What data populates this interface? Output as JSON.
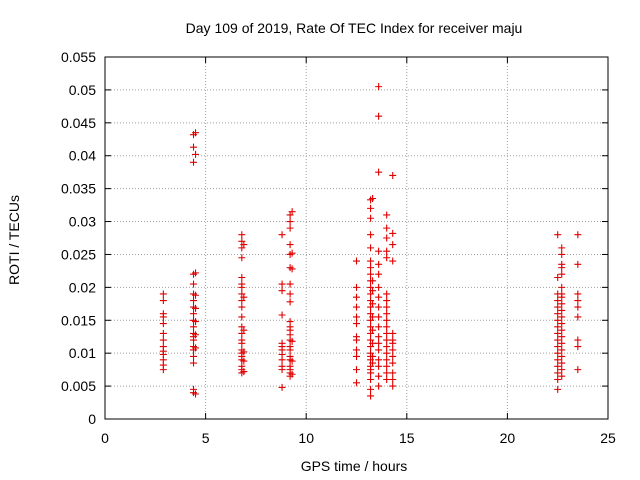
{
  "chart_data": {
    "type": "scatter",
    "title": "Day 109 of 2019, Rate Of TEC Index for receiver maju",
    "xlabel": "GPS time / hours",
    "ylabel": "ROTI / TECUs",
    "xlim": [
      0,
      25
    ],
    "ylim": [
      0,
      0.055
    ],
    "xticks": [
      0,
      5,
      10,
      15,
      20,
      25
    ],
    "xtick_labels": [
      "0",
      "5",
      "10",
      "15",
      "20",
      "25"
    ],
    "yticks": [
      0,
      0.005,
      0.01,
      0.015,
      0.02,
      0.025,
      0.03,
      0.035,
      0.04,
      0.045,
      0.05,
      0.055
    ],
    "ytick_labels": [
      "0",
      "0.005",
      "0.01",
      "0.015",
      "0.02",
      "0.025",
      "0.03",
      "0.035",
      "0.04",
      "0.045",
      "0.05",
      "0.055"
    ],
    "grid": true,
    "marker": "+",
    "color": "#e00000",
    "series": [
      {
        "name": "ROTI",
        "points": [
          [
            2.9,
            0.0075
          ],
          [
            2.9,
            0.0082
          ],
          [
            2.9,
            0.009
          ],
          [
            2.9,
            0.0098
          ],
          [
            2.9,
            0.0103
          ],
          [
            2.9,
            0.011
          ],
          [
            2.9,
            0.012
          ],
          [
            2.9,
            0.013
          ],
          [
            2.9,
            0.0145
          ],
          [
            2.9,
            0.0155
          ],
          [
            2.9,
            0.016
          ],
          [
            2.9,
            0.018
          ],
          [
            2.9,
            0.019
          ],
          [
            4.4,
            0.004
          ],
          [
            4.4,
            0.0045
          ],
          [
            4.4,
            0.0085
          ],
          [
            4.4,
            0.0095
          ],
          [
            4.4,
            0.0105
          ],
          [
            4.4,
            0.011
          ],
          [
            4.4,
            0.012
          ],
          [
            4.4,
            0.0125
          ],
          [
            4.4,
            0.013
          ],
          [
            4.4,
            0.014
          ],
          [
            4.4,
            0.015
          ],
          [
            4.4,
            0.016
          ],
          [
            4.4,
            0.017
          ],
          [
            4.4,
            0.018
          ],
          [
            4.4,
            0.019
          ],
          [
            4.4,
            0.0205
          ],
          [
            4.4,
            0.022
          ],
          [
            4.4,
            0.039
          ],
          [
            4.4,
            0.0413
          ],
          [
            4.4,
            0.0432
          ],
          [
            4.5,
            0.0038
          ],
          [
            4.5,
            0.0108
          ],
          [
            4.5,
            0.0128
          ],
          [
            4.5,
            0.0148
          ],
          [
            4.5,
            0.0168
          ],
          [
            4.5,
            0.0188
          ],
          [
            4.5,
            0.0222
          ],
          [
            4.5,
            0.0402
          ],
          [
            4.5,
            0.0435
          ],
          [
            6.8,
            0.007
          ],
          [
            6.8,
            0.0075
          ],
          [
            6.8,
            0.008
          ],
          [
            6.8,
            0.009
          ],
          [
            6.8,
            0.0095
          ],
          [
            6.8,
            0.01
          ],
          [
            6.8,
            0.0105
          ],
          [
            6.8,
            0.0115
          ],
          [
            6.8,
            0.012
          ],
          [
            6.8,
            0.013
          ],
          [
            6.8,
            0.014
          ],
          [
            6.8,
            0.0155
          ],
          [
            6.8,
            0.017
          ],
          [
            6.8,
            0.018
          ],
          [
            6.8,
            0.019
          ],
          [
            6.8,
            0.02
          ],
          [
            6.8,
            0.0205
          ],
          [
            6.8,
            0.0215
          ],
          [
            6.8,
            0.0245
          ],
          [
            6.8,
            0.026
          ],
          [
            6.8,
            0.027
          ],
          [
            6.8,
            0.028
          ],
          [
            6.9,
            0.0072
          ],
          [
            6.9,
            0.0088
          ],
          [
            6.9,
            0.0102
          ],
          [
            6.9,
            0.0135
          ],
          [
            6.9,
            0.0185
          ],
          [
            6.9,
            0.0265
          ],
          [
            8.8,
            0.0048
          ],
          [
            8.8,
            0.0075
          ],
          [
            8.8,
            0.008
          ],
          [
            8.8,
            0.009
          ],
          [
            8.8,
            0.0098
          ],
          [
            8.8,
            0.0105
          ],
          [
            8.8,
            0.011
          ],
          [
            8.8,
            0.0115
          ],
          [
            8.8,
            0.0158
          ],
          [
            8.8,
            0.0195
          ],
          [
            8.8,
            0.0205
          ],
          [
            8.8,
            0.028
          ],
          [
            9.2,
            0.0065
          ],
          [
            9.2,
            0.007
          ],
          [
            9.2,
            0.0075
          ],
          [
            9.2,
            0.008
          ],
          [
            9.2,
            0.009
          ],
          [
            9.2,
            0.0095
          ],
          [
            9.2,
            0.0105
          ],
          [
            9.2,
            0.011
          ],
          [
            9.2,
            0.012
          ],
          [
            9.2,
            0.0128
          ],
          [
            9.2,
            0.0135
          ],
          [
            9.2,
            0.014
          ],
          [
            9.2,
            0.0148
          ],
          [
            9.2,
            0.0178
          ],
          [
            9.2,
            0.019
          ],
          [
            9.2,
            0.0205
          ],
          [
            9.2,
            0.023
          ],
          [
            9.2,
            0.025
          ],
          [
            9.2,
            0.0265
          ],
          [
            9.2,
            0.029
          ],
          [
            9.2,
            0.03
          ],
          [
            9.2,
            0.031
          ],
          [
            9.3,
            0.0068
          ],
          [
            9.3,
            0.0088
          ],
          [
            9.3,
            0.0118
          ],
          [
            9.3,
            0.0228
          ],
          [
            9.3,
            0.0252
          ],
          [
            9.3,
            0.0315
          ],
          [
            12.5,
            0.0055
          ],
          [
            12.5,
            0.0075
          ],
          [
            12.5,
            0.0095
          ],
          [
            12.5,
            0.0105
          ],
          [
            12.5,
            0.012
          ],
          [
            12.5,
            0.0125
          ],
          [
            12.5,
            0.0145
          ],
          [
            12.5,
            0.0155
          ],
          [
            12.5,
            0.017
          ],
          [
            12.5,
            0.0185
          ],
          [
            12.5,
            0.02
          ],
          [
            12.5,
            0.024
          ],
          [
            13.2,
            0.0035
          ],
          [
            13.2,
            0.0045
          ],
          [
            13.2,
            0.006
          ],
          [
            13.2,
            0.007
          ],
          [
            13.2,
            0.0075
          ],
          [
            13.2,
            0.008
          ],
          [
            13.2,
            0.009
          ],
          [
            13.2,
            0.0095
          ],
          [
            13.2,
            0.01
          ],
          [
            13.2,
            0.011
          ],
          [
            13.2,
            0.012
          ],
          [
            13.2,
            0.013
          ],
          [
            13.2,
            0.014
          ],
          [
            13.2,
            0.015
          ],
          [
            13.2,
            0.016
          ],
          [
            13.2,
            0.017
          ],
          [
            13.2,
            0.018
          ],
          [
            13.2,
            0.019
          ],
          [
            13.2,
            0.02
          ],
          [
            13.2,
            0.021
          ],
          [
            13.2,
            0.022
          ],
          [
            13.2,
            0.023
          ],
          [
            13.2,
            0.024
          ],
          [
            13.2,
            0.026
          ],
          [
            13.2,
            0.028
          ],
          [
            13.2,
            0.0305
          ],
          [
            13.2,
            0.032
          ],
          [
            13.2,
            0.0333
          ],
          [
            13.3,
            0.0085
          ],
          [
            13.3,
            0.0095
          ],
          [
            13.3,
            0.0115
          ],
          [
            13.3,
            0.0135
          ],
          [
            13.3,
            0.0155
          ],
          [
            13.3,
            0.0175
          ],
          [
            13.3,
            0.0195
          ],
          [
            13.3,
            0.021
          ],
          [
            13.3,
            0.0335
          ],
          [
            13.6,
            0.005
          ],
          [
            13.6,
            0.0065
          ],
          [
            13.6,
            0.008
          ],
          [
            13.6,
            0.009
          ],
          [
            13.6,
            0.0105
          ],
          [
            13.6,
            0.0115
          ],
          [
            13.6,
            0.0125
          ],
          [
            13.6,
            0.014
          ],
          [
            13.6,
            0.0155
          ],
          [
            13.6,
            0.017
          ],
          [
            13.6,
            0.0185
          ],
          [
            13.6,
            0.02
          ],
          [
            13.6,
            0.022
          ],
          [
            13.6,
            0.0235
          ],
          [
            13.6,
            0.0255
          ],
          [
            13.6,
            0.0375
          ],
          [
            13.6,
            0.046
          ],
          [
            13.6,
            0.0505
          ],
          [
            14.0,
            0.006
          ],
          [
            14.0,
            0.007
          ],
          [
            14.0,
            0.008
          ],
          [
            14.0,
            0.009
          ],
          [
            14.0,
            0.01
          ],
          [
            14.0,
            0.011
          ],
          [
            14.0,
            0.012
          ],
          [
            14.0,
            0.013
          ],
          [
            14.0,
            0.014
          ],
          [
            14.0,
            0.015
          ],
          [
            14.0,
            0.016
          ],
          [
            14.0,
            0.017
          ],
          [
            14.0,
            0.018
          ],
          [
            14.0,
            0.019
          ],
          [
            14.0,
            0.0245
          ],
          [
            14.0,
            0.0255
          ],
          [
            14.0,
            0.0275
          ],
          [
            14.0,
            0.029
          ],
          [
            14.0,
            0.031
          ],
          [
            14.3,
            0.005
          ],
          [
            14.3,
            0.006
          ],
          [
            14.3,
            0.007
          ],
          [
            14.3,
            0.0085
          ],
          [
            14.3,
            0.0095
          ],
          [
            14.3,
            0.0105
          ],
          [
            14.3,
            0.0115
          ],
          [
            14.3,
            0.012
          ],
          [
            14.3,
            0.013
          ],
          [
            14.3,
            0.024
          ],
          [
            14.3,
            0.0265
          ],
          [
            14.3,
            0.0282
          ],
          [
            14.3,
            0.037
          ],
          [
            22.5,
            0.0045
          ],
          [
            22.5,
            0.006
          ],
          [
            22.5,
            0.007
          ],
          [
            22.5,
            0.008
          ],
          [
            22.5,
            0.009
          ],
          [
            22.5,
            0.01
          ],
          [
            22.5,
            0.011
          ],
          [
            22.5,
            0.012
          ],
          [
            22.5,
            0.013
          ],
          [
            22.5,
            0.014
          ],
          [
            22.5,
            0.015
          ],
          [
            22.5,
            0.016
          ],
          [
            22.5,
            0.017
          ],
          [
            22.5,
            0.018
          ],
          [
            22.5,
            0.019
          ],
          [
            22.5,
            0.0215
          ],
          [
            22.5,
            0.028
          ],
          [
            22.7,
            0.0065
          ],
          [
            22.7,
            0.0075
          ],
          [
            22.7,
            0.0085
          ],
          [
            22.7,
            0.0095
          ],
          [
            22.7,
            0.0105
          ],
          [
            22.7,
            0.0115
          ],
          [
            22.7,
            0.0125
          ],
          [
            22.7,
            0.0135
          ],
          [
            22.7,
            0.0145
          ],
          [
            22.7,
            0.0155
          ],
          [
            22.7,
            0.0165
          ],
          [
            22.7,
            0.0175
          ],
          [
            22.7,
            0.0185
          ],
          [
            22.7,
            0.019
          ],
          [
            22.7,
            0.02
          ],
          [
            22.7,
            0.022
          ],
          [
            22.7,
            0.023
          ],
          [
            22.7,
            0.0235
          ],
          [
            22.7,
            0.025
          ],
          [
            22.7,
            0.026
          ],
          [
            23.5,
            0.0075
          ],
          [
            23.5,
            0.011
          ],
          [
            23.5,
            0.012
          ],
          [
            23.5,
            0.0155
          ],
          [
            23.5,
            0.017
          ],
          [
            23.5,
            0.018
          ],
          [
            23.5,
            0.019
          ],
          [
            23.5,
            0.0235
          ],
          [
            23.5,
            0.028
          ]
        ]
      }
    ]
  }
}
